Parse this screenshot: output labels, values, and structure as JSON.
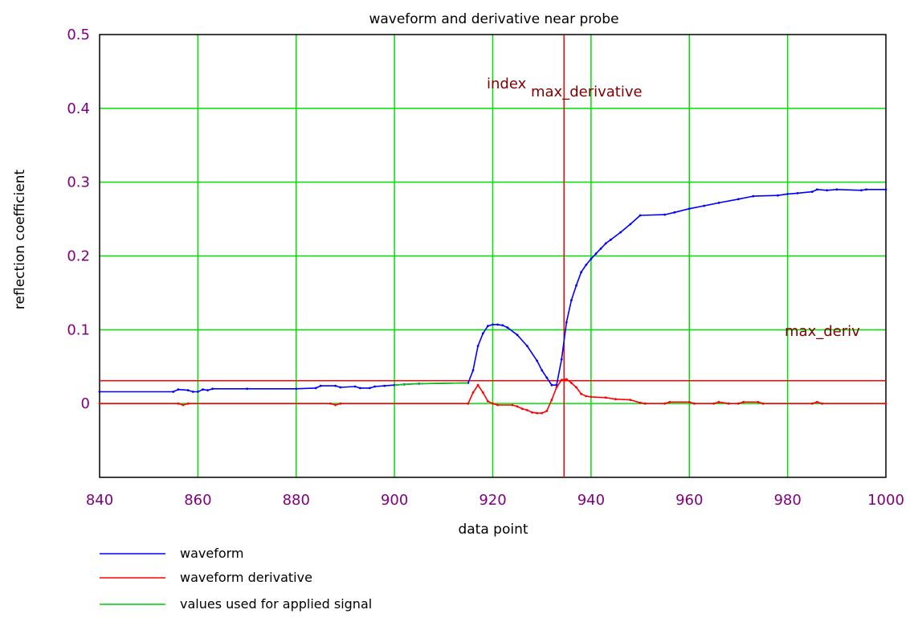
{
  "chart_data": {
    "type": "line",
    "title": "waveform and derivative near probe",
    "xlabel": "data point",
    "ylabel": "reflection coefficient",
    "xlim": [
      840,
      1000
    ],
    "ylim": [
      -0.1,
      0.5
    ],
    "xticks": [
      "840",
      "860",
      "880",
      "900",
      "920",
      "940",
      "960",
      "980",
      "1000"
    ],
    "yticks": [
      "0",
      "0.1",
      "0.2",
      "0.3",
      "0.4",
      "0.5"
    ],
    "grid": true,
    "annotations": {
      "index_main": "index",
      "index_sub": "max_derivative",
      "max_deriv": "max_deriv"
    },
    "markers": {
      "vertical_x": 934.5,
      "horizontal_y": 0.031
    },
    "series": [
      {
        "name": "waveform",
        "color": "#0000ff",
        "points": [
          [
            840,
            0.016
          ],
          [
            855,
            0.016
          ],
          [
            856,
            0.019
          ],
          [
            858,
            0.018
          ],
          [
            859,
            0.016
          ],
          [
            860,
            0.016
          ],
          [
            861,
            0.019
          ],
          [
            862,
            0.018
          ],
          [
            863,
            0.02
          ],
          [
            870,
            0.02
          ],
          [
            880,
            0.02
          ],
          [
            884,
            0.021
          ],
          [
            885,
            0.024
          ],
          [
            888,
            0.024
          ],
          [
            889,
            0.022
          ],
          [
            892,
            0.023
          ],
          [
            893,
            0.021
          ],
          [
            895,
            0.021
          ],
          [
            896,
            0.023
          ],
          [
            898,
            0.024
          ],
          [
            900,
            0.025
          ],
          [
            902,
            0.026
          ],
          [
            905,
            0.027
          ],
          [
            915,
            0.028
          ],
          [
            916,
            0.045
          ],
          [
            917,
            0.078
          ],
          [
            918,
            0.095
          ],
          [
            919,
            0.105
          ],
          [
            920,
            0.107
          ],
          [
            921,
            0.107
          ],
          [
            922,
            0.106
          ],
          [
            923,
            0.103
          ],
          [
            925,
            0.093
          ],
          [
            927,
            0.078
          ],
          [
            929,
            0.058
          ],
          [
            930,
            0.045
          ],
          [
            931,
            0.035
          ],
          [
            932,
            0.025
          ],
          [
            933,
            0.025
          ],
          [
            934,
            0.06
          ],
          [
            935,
            0.11
          ],
          [
            936,
            0.14
          ],
          [
            937,
            0.16
          ],
          [
            938,
            0.178
          ],
          [
            939,
            0.188
          ],
          [
            940,
            0.196
          ],
          [
            941,
            0.203
          ],
          [
            942,
            0.21
          ],
          [
            943,
            0.217
          ],
          [
            944,
            0.222
          ],
          [
            946,
            0.232
          ],
          [
            948,
            0.243
          ],
          [
            950,
            0.255
          ],
          [
            955,
            0.256
          ],
          [
            957,
            0.259
          ],
          [
            960,
            0.264
          ],
          [
            963,
            0.268
          ],
          [
            966,
            0.272
          ],
          [
            970,
            0.277
          ],
          [
            973,
            0.281
          ],
          [
            978,
            0.282
          ],
          [
            980,
            0.284
          ],
          [
            982,
            0.285
          ],
          [
            985,
            0.287
          ],
          [
            986,
            0.29
          ],
          [
            988,
            0.289
          ],
          [
            990,
            0.29
          ],
          [
            995,
            0.289
          ],
          [
            996,
            0.29
          ],
          [
            1000,
            0.29
          ]
        ]
      },
      {
        "name": "waveform derivative",
        "color": "#ff0000",
        "points": [
          [
            840,
            0.0
          ],
          [
            856,
            0.0
          ],
          [
            857,
            -0.002
          ],
          [
            858,
            0.0
          ],
          [
            887,
            0.0
          ],
          [
            888,
            -0.002
          ],
          [
            889,
            0.0
          ],
          [
            915,
            0.0
          ],
          [
            916,
            0.015
          ],
          [
            917,
            0.025
          ],
          [
            918,
            0.015
          ],
          [
            919,
            0.003
          ],
          [
            920,
            0.0
          ],
          [
            921,
            -0.002
          ],
          [
            924,
            -0.002
          ],
          [
            925,
            -0.004
          ],
          [
            926,
            -0.007
          ],
          [
            927,
            -0.009
          ],
          [
            928,
            -0.012
          ],
          [
            929,
            -0.013
          ],
          [
            930,
            -0.013
          ],
          [
            931,
            -0.01
          ],
          [
            932,
            0.005
          ],
          [
            933,
            0.022
          ],
          [
            934,
            0.032
          ],
          [
            935,
            0.033
          ],
          [
            936,
            0.028
          ],
          [
            937,
            0.022
          ],
          [
            938,
            0.013
          ],
          [
            939,
            0.01
          ],
          [
            940,
            0.009
          ],
          [
            943,
            0.008
          ],
          [
            945,
            0.006
          ],
          [
            948,
            0.005
          ],
          [
            950,
            0.001
          ],
          [
            951,
            0.0
          ],
          [
            955,
            0.0
          ],
          [
            956,
            0.002
          ],
          [
            960,
            0.002
          ],
          [
            961,
            0.0
          ],
          [
            965,
            0.0
          ],
          [
            966,
            0.002
          ],
          [
            968,
            0.0
          ],
          [
            970,
            0.0
          ],
          [
            971,
            0.002
          ],
          [
            974,
            0.002
          ],
          [
            975,
            0.0
          ],
          [
            985,
            0.0
          ],
          [
            986,
            0.002
          ],
          [
            987,
            0.0
          ],
          [
            1000,
            0.0
          ]
        ]
      },
      {
        "name": "values used for applied signal",
        "color": "#00cc00",
        "points": [
          [
            900,
            0.025
          ],
          [
            902,
            0.026
          ],
          [
            905,
            0.027
          ],
          [
            915,
            0.028
          ]
        ]
      }
    ]
  }
}
